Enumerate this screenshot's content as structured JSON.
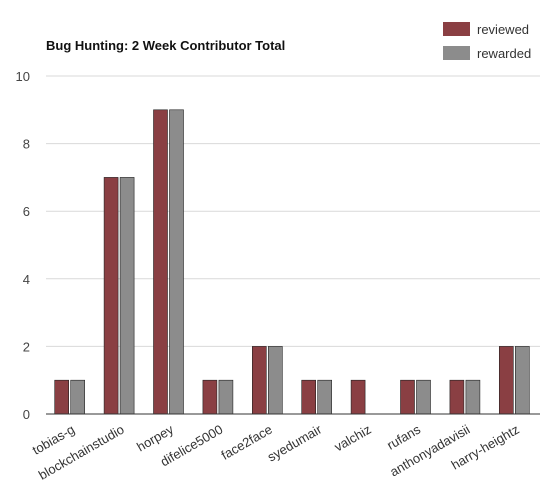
{
  "chart_data": {
    "type": "bar",
    "title": "Bug Hunting: 2 Week Contributor Total",
    "xlabel": "",
    "ylabel": "",
    "ylim": [
      0,
      10
    ],
    "yticks": [
      0,
      2,
      4,
      6,
      8,
      10
    ],
    "grid": true,
    "legend_position": "top-right",
    "categories": [
      "tobias-g",
      "blockchainstudio",
      "horpey",
      "difelice5000",
      "face2face",
      "syedumair",
      "valchiz",
      "rufans",
      "anthonyadavisii",
      "harry-heightz"
    ],
    "series": [
      {
        "name": "reviewed",
        "color": "#8a3f43",
        "values": [
          1,
          7,
          9,
          1,
          2,
          1,
          1,
          1,
          1,
          2
        ]
      },
      {
        "name": "rewarded",
        "color": "#8c8c8c",
        "values": [
          1,
          7,
          9,
          1,
          2,
          1,
          0,
          1,
          1,
          2
        ]
      }
    ]
  }
}
